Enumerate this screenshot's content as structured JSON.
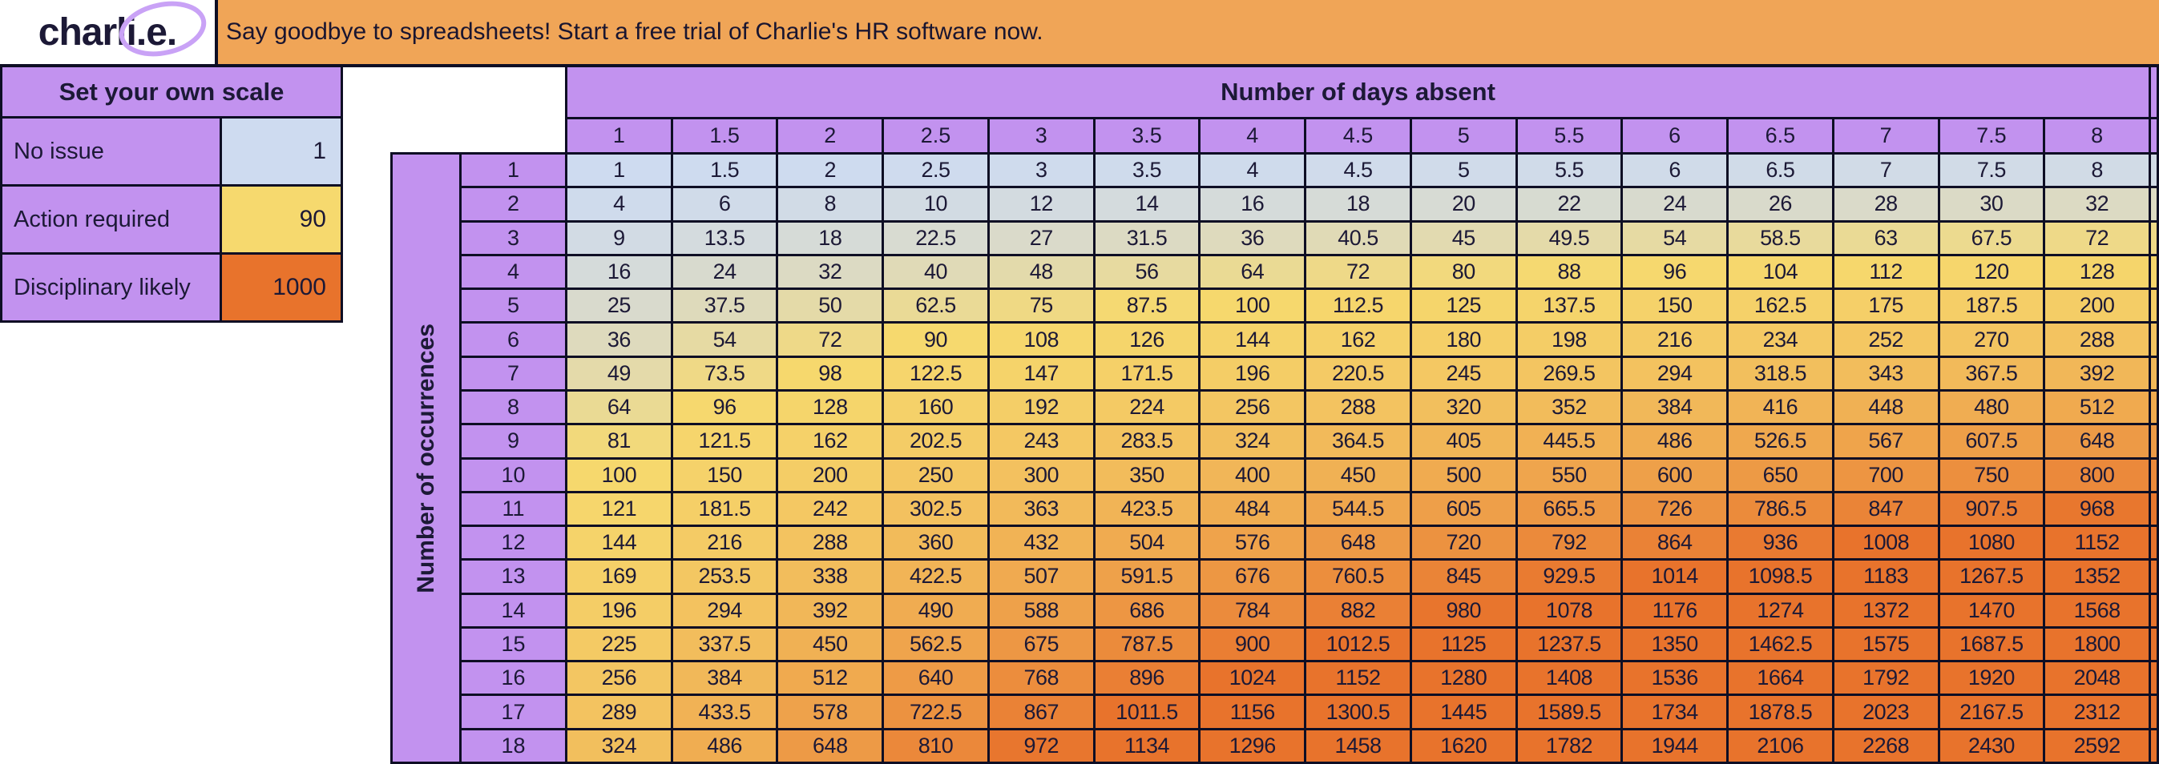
{
  "logo": {
    "text_prefix": "charl",
    "text_circled": "i.e.",
    "circle_color": "#C9A2F6"
  },
  "banner": {
    "text": "Say goodbye to spreadsheets! Start a free trial of Charlie's HR software now.",
    "bg": "#F0A557"
  },
  "scale_panel": {
    "title": "Set your own scale",
    "rows": [
      {
        "label": "No issue",
        "value": "1",
        "color": "#CEDBF0"
      },
      {
        "label": "Action required",
        "value": "90",
        "color": "#F6D96E"
      },
      {
        "label": "Disciplinary likely",
        "value": "1000",
        "color": "#E8732C"
      }
    ]
  },
  "table": {
    "col_header": "Number of days absent",
    "row_header": "Number of occurrences",
    "days": [
      "1",
      "1.5",
      "2",
      "2.5",
      "3",
      "3.5",
      "4",
      "4.5",
      "5",
      "5.5",
      "6",
      "6.5",
      "7",
      "7.5",
      "8"
    ],
    "occurrences": [
      "1",
      "2",
      "3",
      "4",
      "5",
      "6",
      "7",
      "8",
      "9",
      "10",
      "11",
      "12",
      "13",
      "14",
      "15",
      "16",
      "17",
      "18"
    ],
    "values": [
      [
        1,
        1.5,
        2,
        2.5,
        3,
        3.5,
        4,
        4.5,
        5,
        5.5,
        6,
        6.5,
        7,
        7.5,
        8
      ],
      [
        4,
        6,
        8,
        10,
        12,
        14,
        16,
        18,
        20,
        22,
        24,
        26,
        28,
        30,
        32
      ],
      [
        9,
        13.5,
        18,
        22.5,
        27,
        31.5,
        36,
        40.5,
        45,
        49.5,
        54,
        58.5,
        63,
        67.5,
        72
      ],
      [
        16,
        24,
        32,
        40,
        48,
        56,
        64,
        72,
        80,
        88,
        96,
        104,
        112,
        120,
        128
      ],
      [
        25,
        37.5,
        50,
        62.5,
        75,
        87.5,
        100,
        112.5,
        125,
        137.5,
        150,
        162.5,
        175,
        187.5,
        200
      ],
      [
        36,
        54,
        72,
        90,
        108,
        126,
        144,
        162,
        180,
        198,
        216,
        234,
        252,
        270,
        288
      ],
      [
        49,
        73.5,
        98,
        122.5,
        147,
        171.5,
        196,
        220.5,
        245,
        269.5,
        294,
        318.5,
        343,
        367.5,
        392
      ],
      [
        64,
        96,
        128,
        160,
        192,
        224,
        256,
        288,
        320,
        352,
        384,
        416,
        448,
        480,
        512
      ],
      [
        81,
        121.5,
        162,
        202.5,
        243,
        283.5,
        324,
        364.5,
        405,
        445.5,
        486,
        526.5,
        567,
        607.5,
        648
      ],
      [
        100,
        150,
        200,
        250,
        300,
        350,
        400,
        450,
        500,
        550,
        600,
        650,
        700,
        750,
        800
      ],
      [
        121,
        181.5,
        242,
        302.5,
        363,
        423.5,
        484,
        544.5,
        605,
        665.5,
        726,
        786.5,
        847,
        907.5,
        968
      ],
      [
        144,
        216,
        288,
        360,
        432,
        504,
        576,
        648,
        720,
        792,
        864,
        936,
        1008,
        1080,
        1152
      ],
      [
        169,
        253.5,
        338,
        422.5,
        507,
        591.5,
        676,
        760.5,
        845,
        929.5,
        1014,
        1098.5,
        1183,
        1267.5,
        1352
      ],
      [
        196,
        294,
        392,
        490,
        588,
        686,
        784,
        882,
        980,
        1078,
        1176,
        1274,
        1372,
        1470,
        1568
      ],
      [
        225,
        337.5,
        450,
        562.5,
        675,
        787.5,
        900,
        1012.5,
        1125,
        1237.5,
        1350,
        1462.5,
        1575,
        1687.5,
        1800
      ],
      [
        256,
        384,
        512,
        640,
        768,
        896,
        1024,
        1152,
        1280,
        1408,
        1536,
        1664,
        1792,
        1920,
        2048
      ],
      [
        289,
        433.5,
        578,
        722.5,
        867,
        1011.5,
        1156,
        1300.5,
        1445,
        1589.5,
        1734,
        1878.5,
        2023,
        2167.5,
        2312
      ],
      [
        324,
        486,
        648,
        810,
        972,
        1134,
        1296,
        1458,
        1620,
        1782,
        1944,
        2106,
        2268,
        2430,
        2592
      ]
    ]
  },
  "colors": {
    "purple": "#C292EF",
    "banner_orange": "#F0A557",
    "ink": "#1C1936",
    "line": "#0E0E24",
    "scale_stops": [
      {
        "value": 1,
        "color": "#CEDBF0"
      },
      {
        "value": 90,
        "color": "#F6D96E"
      },
      {
        "value": 1000,
        "color": "#E8732C"
      }
    ]
  }
}
